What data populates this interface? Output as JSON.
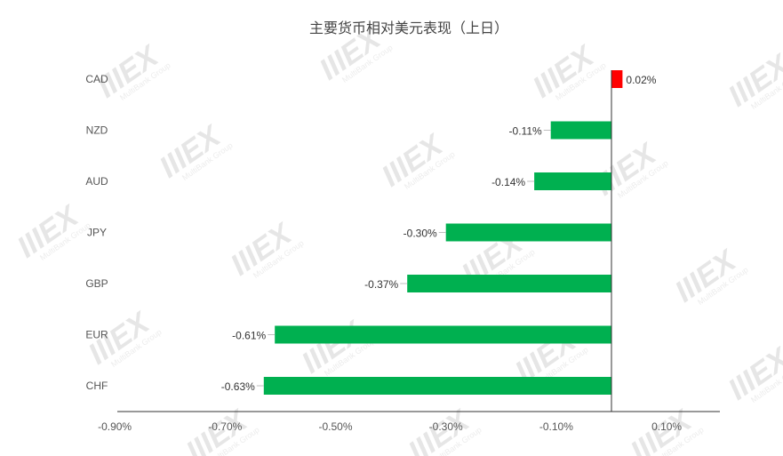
{
  "chart_data": {
    "type": "bar",
    "orientation": "horizontal",
    "title": "主要货币相对美元表现（上日）",
    "categories": [
      "CAD",
      "NZD",
      "AUD",
      "JPY",
      "GBP",
      "EUR",
      "CHF"
    ],
    "values": [
      0.02,
      -0.11,
      -0.14,
      -0.3,
      -0.37,
      -0.61,
      -0.63
    ],
    "data_labels": [
      "0.02%",
      "-0.11%",
      "-0.14%",
      "-0.30%",
      "-0.37%",
      "-0.61%",
      "-0.63%"
    ],
    "x_ticks": [
      -0.9,
      -0.7,
      -0.5,
      -0.3,
      -0.1,
      0.1
    ],
    "x_tick_labels": [
      "-0.90%",
      "-0.70%",
      "-0.50%",
      "-0.30%",
      "-0.10%",
      "0.10%"
    ],
    "xlim": [
      -0.9,
      0.1
    ],
    "grid": false,
    "legend": "none",
    "colors": {
      "positive": "#ff0000",
      "negative": "#00b050",
      "axis": "#333333"
    }
  },
  "watermark": {
    "logo": "IIIEX",
    "sub": "MultiBank Group"
  }
}
